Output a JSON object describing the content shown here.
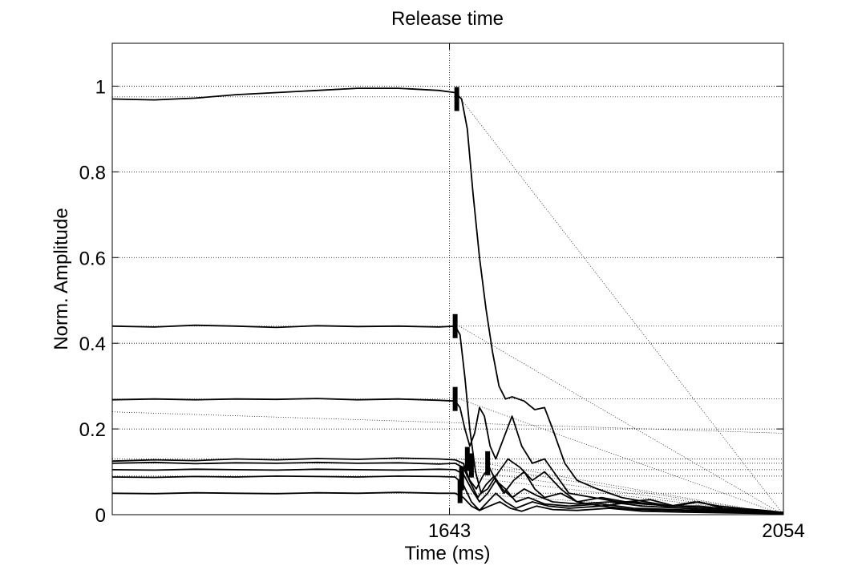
{
  "chart_data": {
    "type": "line",
    "title": "Release time",
    "xlabel": "Time (ms)",
    "ylabel": "Norm. Amplitude",
    "xlim": [
      1228,
      2054
    ],
    "ylim": [
      0,
      1.1
    ],
    "xticks": [
      1643,
      2054
    ],
    "xtick_labels": [
      "1643",
      "2054"
    ],
    "yticks": [
      0,
      0.2,
      0.4,
      0.6,
      0.8,
      1
    ],
    "ytick_labels": [
      "0",
      "0.2",
      "0.4",
      "0.6",
      "0.8",
      "1"
    ],
    "grid": true,
    "release_marker_x": 1643,
    "series": [
      {
        "level": 0.975,
        "points": [
          [
            1228,
            0.97
          ],
          [
            1280,
            0.968
          ],
          [
            1330,
            0.972
          ],
          [
            1380,
            0.98
          ],
          [
            1430,
            0.985
          ],
          [
            1480,
            0.99
          ],
          [
            1530,
            0.995
          ],
          [
            1580,
            0.995
          ],
          [
            1630,
            0.99
          ],
          [
            1650,
            0.985
          ],
          [
            1658,
            0.97
          ],
          [
            1665,
            0.9
          ],
          [
            1672,
            0.75
          ],
          [
            1680,
            0.6
          ],
          [
            1688,
            0.48
          ],
          [
            1696,
            0.38
          ],
          [
            1704,
            0.3
          ],
          [
            1712,
            0.27
          ],
          [
            1720,
            0.275
          ],
          [
            1735,
            0.265
          ],
          [
            1748,
            0.245
          ],
          [
            1760,
            0.25
          ],
          [
            1770,
            0.2
          ],
          [
            1785,
            0.12
          ],
          [
            1800,
            0.08
          ],
          [
            1825,
            0.06
          ],
          [
            1855,
            0.04
          ],
          [
            1885,
            0.03
          ],
          [
            1915,
            0.02
          ],
          [
            1945,
            0.03
          ],
          [
            1975,
            0.02
          ],
          [
            2000,
            0.015
          ],
          [
            2030,
            0.01
          ],
          [
            2054,
            0.005
          ]
        ]
      },
      {
        "level": 0.44,
        "points": [
          [
            1228,
            0.44
          ],
          [
            1280,
            0.438
          ],
          [
            1330,
            0.442
          ],
          [
            1380,
            0.44
          ],
          [
            1430,
            0.437
          ],
          [
            1480,
            0.441
          ],
          [
            1530,
            0.439
          ],
          [
            1580,
            0.44
          ],
          [
            1630,
            0.438
          ],
          [
            1650,
            0.44
          ],
          [
            1656,
            0.42
          ],
          [
            1662,
            0.32
          ],
          [
            1668,
            0.2
          ],
          [
            1675,
            0.1
          ],
          [
            1682,
            0.05
          ],
          [
            1690,
            0.06
          ],
          [
            1700,
            0.09
          ],
          [
            1715,
            0.13
          ],
          [
            1730,
            0.11
          ],
          [
            1745,
            0.08
          ],
          [
            1760,
            0.1
          ],
          [
            1780,
            0.06
          ],
          [
            1800,
            0.03
          ],
          [
            1830,
            0.02
          ],
          [
            1870,
            0.03
          ],
          [
            1910,
            0.02
          ],
          [
            1950,
            0.02
          ],
          [
            2000,
            0.01
          ],
          [
            2054,
            0.005
          ]
        ]
      },
      {
        "level": 0.27,
        "points": [
          [
            1228,
            0.268
          ],
          [
            1280,
            0.27
          ],
          [
            1330,
            0.268
          ],
          [
            1380,
            0.27
          ],
          [
            1430,
            0.269
          ],
          [
            1480,
            0.271
          ],
          [
            1530,
            0.268
          ],
          [
            1580,
            0.27
          ],
          [
            1630,
            0.267
          ],
          [
            1650,
            0.265
          ],
          [
            1656,
            0.25
          ],
          [
            1662,
            0.2
          ],
          [
            1668,
            0.16
          ],
          [
            1674,
            0.19
          ],
          [
            1680,
            0.25
          ],
          [
            1686,
            0.23
          ],
          [
            1693,
            0.16
          ],
          [
            1700,
            0.13
          ],
          [
            1710,
            0.18
          ],
          [
            1720,
            0.23
          ],
          [
            1732,
            0.16
          ],
          [
            1745,
            0.12
          ],
          [
            1760,
            0.13
          ],
          [
            1775,
            0.09
          ],
          [
            1790,
            0.05
          ],
          [
            1820,
            0.04
          ],
          [
            1850,
            0.03
          ],
          [
            1880,
            0.025
          ],
          [
            1920,
            0.02
          ],
          [
            1960,
            0.015
          ],
          [
            2000,
            0.01
          ],
          [
            2054,
            0.005
          ]
        ]
      },
      {
        "level": 0.13,
        "points": [
          [
            1228,
            0.125
          ],
          [
            1280,
            0.128
          ],
          [
            1330,
            0.126
          ],
          [
            1380,
            0.13
          ],
          [
            1430,
            0.128
          ],
          [
            1480,
            0.131
          ],
          [
            1530,
            0.129
          ],
          [
            1580,
            0.132
          ],
          [
            1630,
            0.13
          ],
          [
            1650,
            0.128
          ],
          [
            1660,
            0.12
          ],
          [
            1668,
            0.08
          ],
          [
            1676,
            0.06
          ],
          [
            1684,
            0.09
          ],
          [
            1692,
            0.11
          ],
          [
            1700,
            0.08
          ],
          [
            1710,
            0.05
          ],
          [
            1722,
            0.08
          ],
          [
            1735,
            0.1
          ],
          [
            1748,
            0.06
          ],
          [
            1760,
            0.04
          ],
          [
            1780,
            0.05
          ],
          [
            1800,
            0.03
          ],
          [
            1830,
            0.04
          ],
          [
            1860,
            0.03
          ],
          [
            1890,
            0.035
          ],
          [
            1920,
            0.02
          ],
          [
            1950,
            0.03
          ],
          [
            1980,
            0.015
          ],
          [
            2020,
            0.01
          ],
          [
            2054,
            0.005
          ]
        ]
      },
      {
        "level": 0.12,
        "points": [
          [
            1228,
            0.12
          ],
          [
            1280,
            0.122
          ],
          [
            1330,
            0.119
          ],
          [
            1380,
            0.121
          ],
          [
            1430,
            0.12
          ],
          [
            1480,
            0.122
          ],
          [
            1530,
            0.12
          ],
          [
            1580,
            0.121
          ],
          [
            1630,
            0.118
          ],
          [
            1650,
            0.12
          ],
          [
            1660,
            0.11
          ],
          [
            1670,
            0.07
          ],
          [
            1678,
            0.04
          ],
          [
            1688,
            0.07
          ],
          [
            1698,
            0.09
          ],
          [
            1708,
            0.06
          ],
          [
            1720,
            0.04
          ],
          [
            1735,
            0.06
          ],
          [
            1750,
            0.045
          ],
          [
            1770,
            0.03
          ],
          [
            1800,
            0.025
          ],
          [
            1840,
            0.03
          ],
          [
            1880,
            0.02
          ],
          [
            1930,
            0.015
          ],
          [
            1980,
            0.01
          ],
          [
            2054,
            0.005
          ]
        ]
      },
      {
        "level": 0.105,
        "points": [
          [
            1228,
            0.105
          ],
          [
            1280,
            0.104
          ],
          [
            1330,
            0.106
          ],
          [
            1380,
            0.105
          ],
          [
            1430,
            0.104
          ],
          [
            1480,
            0.106
          ],
          [
            1530,
            0.105
          ],
          [
            1580,
            0.104
          ],
          [
            1630,
            0.106
          ],
          [
            1650,
            0.105
          ],
          [
            1660,
            0.095
          ],
          [
            1670,
            0.06
          ],
          [
            1680,
            0.03
          ],
          [
            1690,
            0.05
          ],
          [
            1700,
            0.08
          ],
          [
            1712,
            0.06
          ],
          [
            1725,
            0.03
          ],
          [
            1740,
            0.04
          ],
          [
            1760,
            0.025
          ],
          [
            1790,
            0.02
          ],
          [
            1830,
            0.025
          ],
          [
            1870,
            0.015
          ],
          [
            1920,
            0.012
          ],
          [
            1980,
            0.008
          ],
          [
            2054,
            0.004
          ]
        ]
      },
      {
        "level": 0.09,
        "points": [
          [
            1228,
            0.088
          ],
          [
            1280,
            0.087
          ],
          [
            1330,
            0.089
          ],
          [
            1380,
            0.088
          ],
          [
            1430,
            0.09
          ],
          [
            1480,
            0.089
          ],
          [
            1530,
            0.088
          ],
          [
            1580,
            0.09
          ],
          [
            1630,
            0.089
          ],
          [
            1650,
            0.088
          ],
          [
            1660,
            0.07
          ],
          [
            1670,
            0.03
          ],
          [
            1680,
            0.01
          ],
          [
            1690,
            0.03
          ],
          [
            1700,
            0.05
          ],
          [
            1712,
            0.03
          ],
          [
            1725,
            0.015
          ],
          [
            1745,
            0.03
          ],
          [
            1765,
            0.02
          ],
          [
            1790,
            0.015
          ],
          [
            1830,
            0.02
          ],
          [
            1870,
            0.012
          ],
          [
            1920,
            0.01
          ],
          [
            1980,
            0.006
          ],
          [
            2054,
            0.003
          ]
        ]
      },
      {
        "level": 0.05,
        "points": [
          [
            1228,
            0.05
          ],
          [
            1280,
            0.049
          ],
          [
            1330,
            0.051
          ],
          [
            1380,
            0.05
          ],
          [
            1430,
            0.049
          ],
          [
            1480,
            0.051
          ],
          [
            1530,
            0.05
          ],
          [
            1580,
            0.052
          ],
          [
            1630,
            0.05
          ],
          [
            1650,
            0.05
          ],
          [
            1660,
            0.04
          ],
          [
            1670,
            0.02
          ],
          [
            1680,
            0.01
          ],
          [
            1692,
            0.02
          ],
          [
            1705,
            0.03
          ],
          [
            1718,
            0.015
          ],
          [
            1732,
            0.008
          ],
          [
            1750,
            0.02
          ],
          [
            1770,
            0.012
          ],
          [
            1800,
            0.01
          ],
          [
            1840,
            0.015
          ],
          [
            1880,
            0.008
          ],
          [
            1930,
            0.006
          ],
          [
            1990,
            0.004
          ],
          [
            2054,
            0.002
          ]
        ]
      }
    ],
    "release_markers": [
      {
        "x": 1652,
        "y": 0.97
      },
      {
        "x": 1650,
        "y": 0.44
      },
      {
        "x": 1650,
        "y": 0.27
      },
      {
        "x": 1658,
        "y": 0.085
      },
      {
        "x": 1656,
        "y": 0.055
      },
      {
        "x": 1665,
        "y": 0.13
      },
      {
        "x": 1670,
        "y": 0.115
      },
      {
        "x": 1690,
        "y": 0.12
      }
    ]
  }
}
